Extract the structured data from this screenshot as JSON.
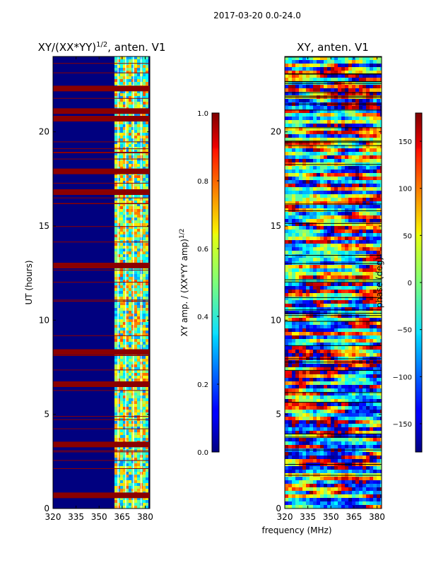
{
  "figure_title": "2017-03-20 0.0-24.0",
  "xlabel": "frequency (MHz)",
  "colors": {
    "cmap": "jet",
    "stripe": "#8b0000"
  },
  "chart_data": [
    {
      "type": "heatmap",
      "name": "amplitude",
      "title": "XY/(XX*YY)",
      "title_exponent": "1/2",
      "title_suffix": ", anten. V1",
      "ylabel": "UT (hours)",
      "xlim": [
        320,
        383
      ],
      "ylim": [
        0,
        24
      ],
      "xticks": [
        320,
        335,
        350,
        365,
        380
      ],
      "yticks": [
        0,
        5,
        10,
        15,
        20
      ],
      "colorbar": {
        "label": "XY amp. / (XX*YY amp)",
        "label_exponent": "1/2",
        "min": 0.0,
        "max": 1.0,
        "ticks": [
          "0.0",
          "0.2",
          "0.4",
          "0.6",
          "0.8",
          "1.0"
        ],
        "tick_values": [
          0.0,
          0.2,
          0.4,
          0.6,
          0.8,
          1.0
        ]
      },
      "active_band_mhz": [
        360,
        381
      ],
      "flagged_hours": [
        0.7,
        3.4,
        6.6,
        8.3,
        12.9,
        16.8,
        17.9,
        20.7,
        21.1,
        22.3
      ]
    },
    {
      "type": "heatmap",
      "name": "phase",
      "title": "XY, anten. V1",
      "xlim": [
        320,
        383
      ],
      "ylim": [
        0,
        24
      ],
      "xticks": [
        320,
        335,
        350,
        365,
        380
      ],
      "yticks": [
        0,
        5,
        10,
        15,
        20
      ],
      "colorbar": {
        "label": "phase (deg)",
        "min": -180,
        "max": 180,
        "ticks": [
          "−150",
          "−100",
          "−50",
          "0",
          "50",
          "100",
          "150"
        ],
        "tick_values": [
          -150,
          -100,
          -50,
          0,
          50,
          100,
          150
        ]
      }
    }
  ]
}
